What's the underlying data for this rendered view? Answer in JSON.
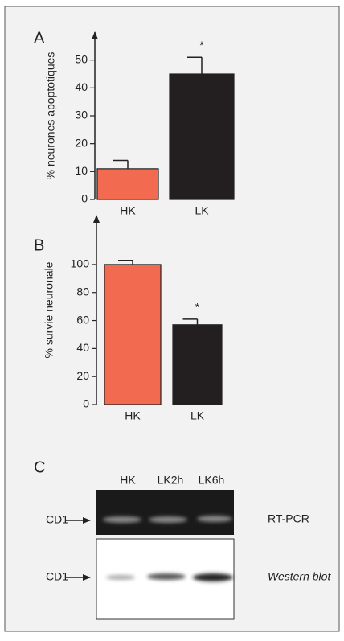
{
  "chart_data": [
    {
      "type": "bar",
      "panel": "A",
      "ylabel": "%  neurones apoptotiques",
      "categories": [
        "HK",
        "LK"
      ],
      "values": [
        11,
        45
      ],
      "errors": [
        3,
        6
      ],
      "colors": [
        "#f26a4f",
        "#231f20"
      ],
      "annotation": "*",
      "ylim": [
        0,
        60
      ],
      "yticks": [
        0,
        10,
        20,
        30,
        40,
        50
      ]
    },
    {
      "type": "bar",
      "panel": "B",
      "ylabel": "% survie neuronale",
      "categories": [
        "HK",
        "LK"
      ],
      "values": [
        100,
        57
      ],
      "errors": [
        3,
        4
      ],
      "colors": [
        "#f26a4f",
        "#231f20"
      ],
      "annotation": "*",
      "ylim": [
        0,
        135
      ],
      "yticks": [
        0,
        20,
        40,
        60,
        80,
        100
      ]
    }
  ],
  "blot": {
    "panel": "C",
    "lanes": [
      "HK",
      "LK2h",
      "LK6h"
    ],
    "rows": [
      {
        "marker": "CD1",
        "label": "RT-PCR"
      },
      {
        "marker": "CD1",
        "label": "Western blot"
      }
    ]
  }
}
